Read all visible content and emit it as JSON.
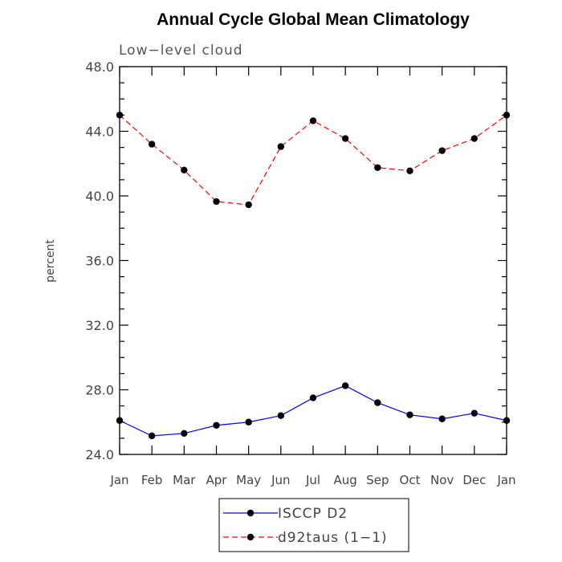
{
  "chart_data": {
    "type": "line",
    "title": "Annual Cycle Global Mean Climatology",
    "subtitle": "Low−level cloud",
    "xlabel": "",
    "ylabel": "percent",
    "categories": [
      "Jan",
      "Feb",
      "Mar",
      "Apr",
      "May",
      "Jun",
      "Jul",
      "Aug",
      "Sep",
      "Oct",
      "Nov",
      "Dec",
      "Jan"
    ],
    "yticks": [
      "24.0",
      "28.0",
      "32.0",
      "36.0",
      "40.0",
      "44.0",
      "48.0"
    ],
    "ylim": [
      24,
      48
    ],
    "grid": false,
    "legend_position": "bottom-center",
    "series": [
      {
        "name": "ISCCP D2",
        "color": "#0000ff",
        "dash": "solid",
        "values": [
          26.1,
          25.15,
          25.3,
          25.8,
          26.0,
          26.4,
          27.5,
          28.25,
          27.2,
          26.45,
          26.2,
          26.55,
          26.1
        ]
      },
      {
        "name": "d92taus (1−1)",
        "color": "#ff0000",
        "dash": "dashed",
        "values": [
          45.0,
          43.2,
          41.6,
          39.65,
          39.45,
          43.05,
          44.65,
          43.55,
          41.75,
          41.55,
          42.8,
          43.55,
          45.0
        ]
      }
    ]
  }
}
